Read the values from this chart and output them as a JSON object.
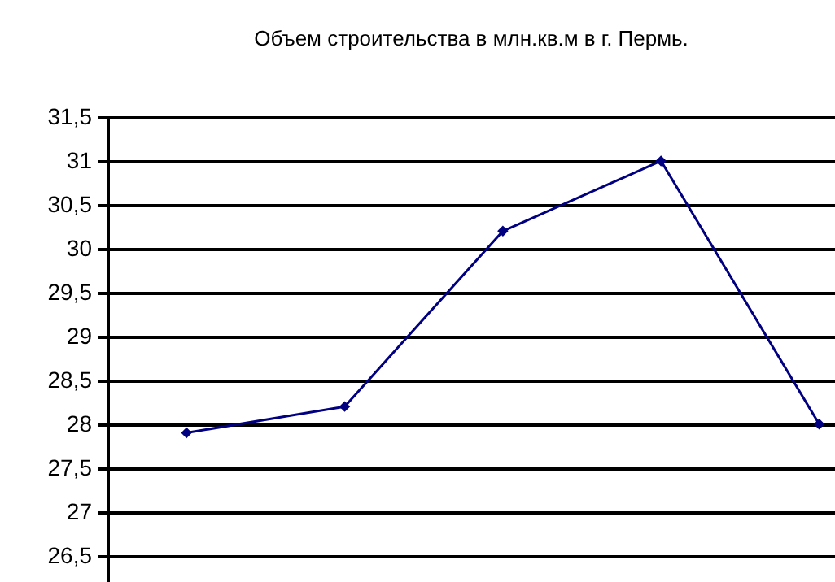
{
  "chart_data": {
    "type": "line",
    "title": "Объем строительства в млн.кв.м в г. Пермь.",
    "categories": [
      null,
      null,
      null,
      null,
      null
    ],
    "series": [
      {
        "color": "#000080",
        "values": [
          27.9,
          28.2,
          30.2,
          31.0,
          28.0
        ]
      }
    ],
    "ylim": [
      26.2,
      31.5
    ],
    "yticks": [
      {
        "value": 26.5,
        "label": "26,5"
      },
      27,
      {
        "value": 27.5,
        "label": "27,5"
      },
      28,
      {
        "value": 28.5,
        "label": "28,5"
      },
      29,
      {
        "value": 29.5,
        "label": "29,5"
      },
      30,
      {
        "value": 30.5,
        "label": "30,5"
      },
      31,
      {
        "value": 31.5,
        "label": "31,5"
      }
    ],
    "grid": "y",
    "marker": "diamond",
    "line_style": "solid"
  }
}
